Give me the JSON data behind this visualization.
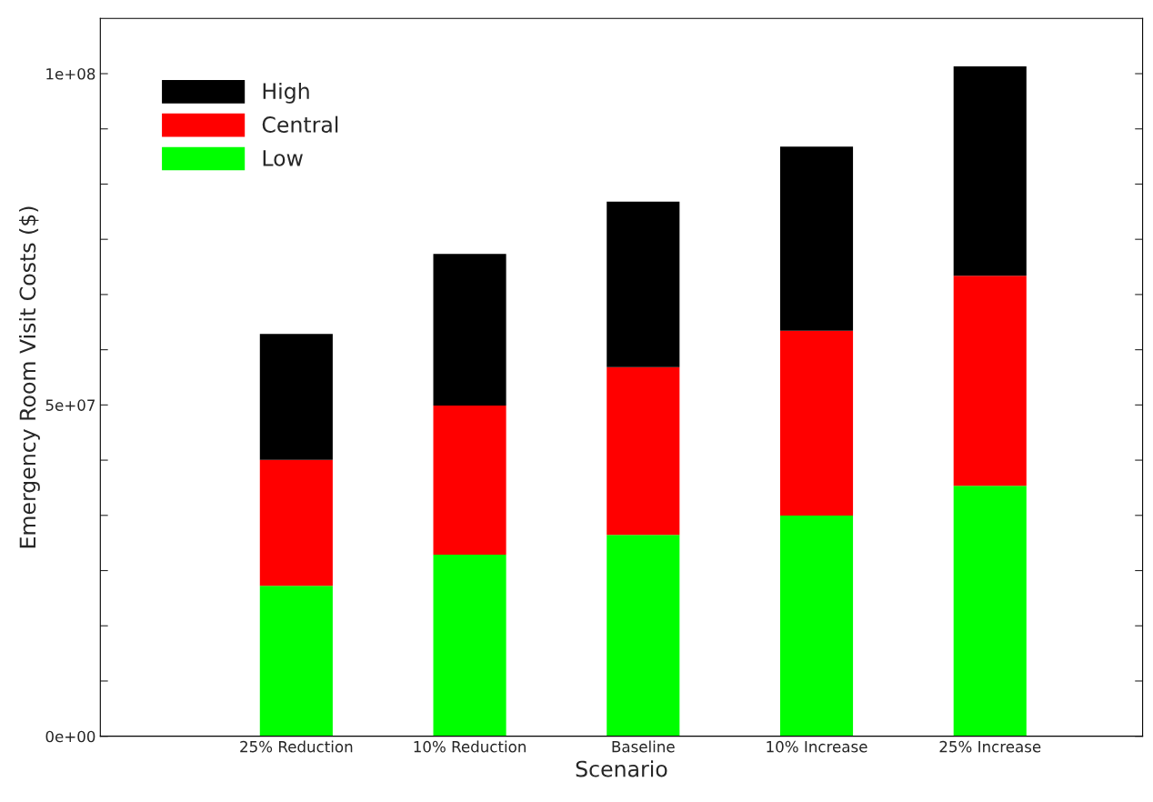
{
  "chart_data": {
    "type": "bar",
    "stacked": true,
    "xlabel": "Scenario",
    "ylabel": "Emergency Room Visit Costs ($)",
    "categories": [
      "25% Reduction",
      "10% Reduction",
      "Baseline",
      "10% Increase",
      "25% Increase"
    ],
    "series": [
      {
        "name": "Low",
        "color": "#00ff00",
        "values": [
          22700000,
          27400000,
          30400000,
          33300000,
          37800000
        ]
      },
      {
        "name": "Central",
        "color": "#ff0000",
        "values": [
          19000000,
          22500000,
          25300000,
          27900000,
          31700000
        ]
      },
      {
        "name": "High",
        "color": "#000000",
        "values": [
          19000000,
          22900000,
          25000000,
          27800000,
          31600000
        ]
      }
    ],
    "ylim": [
      0,
      108333333
    ],
    "yticks": [
      {
        "value": 0,
        "label": "0e+00"
      },
      {
        "value": 8333333,
        "label": null
      },
      {
        "value": 16666667,
        "label": null
      },
      {
        "value": 25000000,
        "label": null
      },
      {
        "value": 33333333,
        "label": null
      },
      {
        "value": 41666667,
        "label": null
      },
      {
        "value": 50000000,
        "label": "5e+07"
      },
      {
        "value": 58333333,
        "label": null
      },
      {
        "value": 66666667,
        "label": null
      },
      {
        "value": 75000000,
        "label": null
      },
      {
        "value": 83333333,
        "label": null
      },
      {
        "value": 91666667,
        "label": null
      },
      {
        "value": 100000000,
        "label": "1e+08"
      }
    ],
    "grid": false,
    "legend": "top left"
  }
}
